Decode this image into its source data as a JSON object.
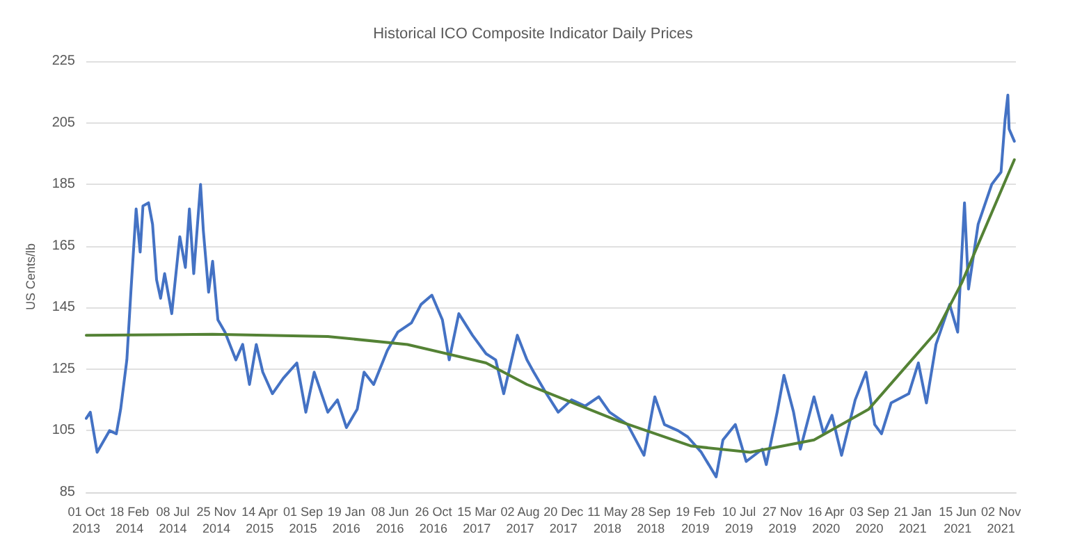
{
  "chart_data": {
    "type": "line",
    "title": "Historical ICO Composite Indicator Daily Prices",
    "ylabel": "US Cents/lb",
    "xlim": [
      "2013-10-01",
      "2021-12-20"
    ],
    "xticks": [
      {
        "value": "2013-10-01",
        "label": "01 Oct 2013"
      },
      {
        "value": "2014-02-18",
        "label": "18 Feb 2014"
      },
      {
        "value": "2014-07-08",
        "label": "08 Jul 2014"
      },
      {
        "value": "2014-11-25",
        "label": "25 Nov 2014"
      },
      {
        "value": "2015-04-14",
        "label": "14 Apr 2015"
      },
      {
        "value": "2015-09-01",
        "label": "01 Sep 2015"
      },
      {
        "value": "2016-01-19",
        "label": "19 Jan 2016"
      },
      {
        "value": "2016-06-08",
        "label": "08 Jun 2016"
      },
      {
        "value": "2016-10-26",
        "label": "26 Oct 2016"
      },
      {
        "value": "2017-03-15",
        "label": "15 Mar 2017"
      },
      {
        "value": "2017-08-02",
        "label": "02 Aug 2017"
      },
      {
        "value": "2017-12-20",
        "label": "20 Dec 2017"
      },
      {
        "value": "2018-05-11",
        "label": "11 May 2018"
      },
      {
        "value": "2018-09-28",
        "label": "28 Sep 2018"
      },
      {
        "value": "2019-02-19",
        "label": "19 Feb 2019"
      },
      {
        "value": "2019-07-10",
        "label": "10 Jul 2019"
      },
      {
        "value": "2019-11-27",
        "label": "27 Nov 2019"
      },
      {
        "value": "2020-04-16",
        "label": "16 Apr 2020"
      },
      {
        "value": "2020-09-03",
        "label": "03 Sep 2020"
      },
      {
        "value": "2021-01-21",
        "label": "21 Jan 2021"
      },
      {
        "value": "2021-06-15",
        "label": "15 Jun 2021"
      },
      {
        "value": "2021-11-02",
        "label": "02 Nov 2021"
      }
    ],
    "ylim": [
      85,
      225
    ],
    "yticks": [
      85,
      105,
      125,
      145,
      165,
      185,
      205,
      225
    ],
    "grid": "y",
    "marker": "none",
    "line_style": "solid",
    "series": [
      {
        "color": "#4472c4",
        "x": [
          "2013-10-01",
          "2013-10-14",
          "2013-11-05",
          "2013-12-15",
          "2014-01-06",
          "2014-01-20",
          "2014-02-09",
          "2014-02-22",
          "2014-03-11",
          "2014-03-24",
          "2014-04-02",
          "2014-04-20",
          "2014-05-03",
          "2014-05-16",
          "2014-05-29",
          "2014-06-11",
          "2014-07-04",
          "2014-07-30",
          "2014-08-17",
          "2014-08-30",
          "2014-09-13",
          "2014-10-05",
          "2014-10-14",
          "2014-10-31",
          "2014-11-13",
          "2014-11-30",
          "2014-12-23",
          "2015-01-27",
          "2015-02-18",
          "2015-03-12",
          "2015-04-03",
          "2015-04-24",
          "2015-05-25",
          "2015-06-29",
          "2015-08-12",
          "2015-09-10",
          "2015-10-07",
          "2015-11-20",
          "2015-12-21",
          "2016-01-19",
          "2016-02-23",
          "2016-03-16",
          "2016-04-16",
          "2016-05-30",
          "2016-07-03",
          "2016-08-16",
          "2016-09-16",
          "2016-10-21",
          "2016-11-24",
          "2016-12-16",
          "2017-01-16",
          "2017-03-01",
          "2017-04-14",
          "2017-05-15",
          "2017-06-10",
          "2017-07-24",
          "2017-08-24",
          "2017-09-15",
          "2017-10-20",
          "2017-12-03",
          "2018-01-15",
          "2018-02-28",
          "2018-04-13",
          "2018-05-18",
          "2018-07-15",
          "2018-09-06",
          "2018-10-11",
          "2018-11-11",
          "2018-12-25",
          "2019-01-25",
          "2019-03-10",
          "2019-04-27",
          "2019-05-19",
          "2019-06-28",
          "2019-08-02",
          "2019-09-23",
          "2019-10-06",
          "2019-11-10",
          "2019-12-02",
          "2020-01-02",
          "2020-01-24",
          "2020-03-08",
          "2020-04-08",
          "2020-05-05",
          "2020-06-05",
          "2020-07-19",
          "2020-08-23",
          "2020-09-20",
          "2020-10-12",
          "2020-11-12",
          "2021-01-08",
          "2021-02-08",
          "2021-03-06",
          "2021-04-06",
          "2021-05-20",
          "2021-06-15",
          "2021-07-07",
          "2021-07-20",
          "2021-08-20",
          "2021-10-03",
          "2021-11-02",
          "2021-11-15",
          "2021-11-24",
          "2021-11-28",
          "2021-12-15"
        ],
        "values": [
          109,
          111,
          98,
          105,
          104,
          112,
          128,
          150,
          177,
          163,
          178,
          179,
          172,
          154,
          148,
          156,
          143,
          168,
          158,
          177,
          156,
          185,
          170,
          150,
          160,
          141,
          137,
          128,
          133,
          120,
          133,
          124,
          117,
          122,
          127,
          111,
          124,
          111,
          115,
          106,
          112,
          124,
          120,
          131,
          137,
          140,
          146,
          149,
          141,
          128,
          143,
          136,
          130,
          128,
          117,
          136,
          128,
          124,
          118,
          111,
          115,
          113,
          116,
          111,
          107,
          97,
          116,
          107,
          105,
          103,
          98,
          90,
          102,
          107,
          95,
          99,
          94,
          111,
          123,
          111,
          99,
          116,
          104,
          110,
          97,
          115,
          124,
          107,
          104,
          114,
          117,
          127,
          114,
          133,
          146,
          137,
          179,
          151,
          172,
          185,
          189,
          206,
          214,
          203,
          199
        ]
      },
      {
        "color": "#548235",
        "x": [
          "2013-10-01",
          "2014-11-13",
          "2015-11-20",
          "2016-08-03",
          "2017-04-14",
          "2017-08-24",
          "2018-06-19",
          "2019-02-06",
          "2019-08-15",
          "2020-03-08",
          "2020-09-01",
          "2021-04-06",
          "2021-06-28",
          "2021-12-15"
        ],
        "values": [
          136,
          136.3,
          135.6,
          133,
          127,
          120,
          108,
          100,
          98,
          102,
          112,
          137,
          153,
          193
        ]
      }
    ]
  }
}
